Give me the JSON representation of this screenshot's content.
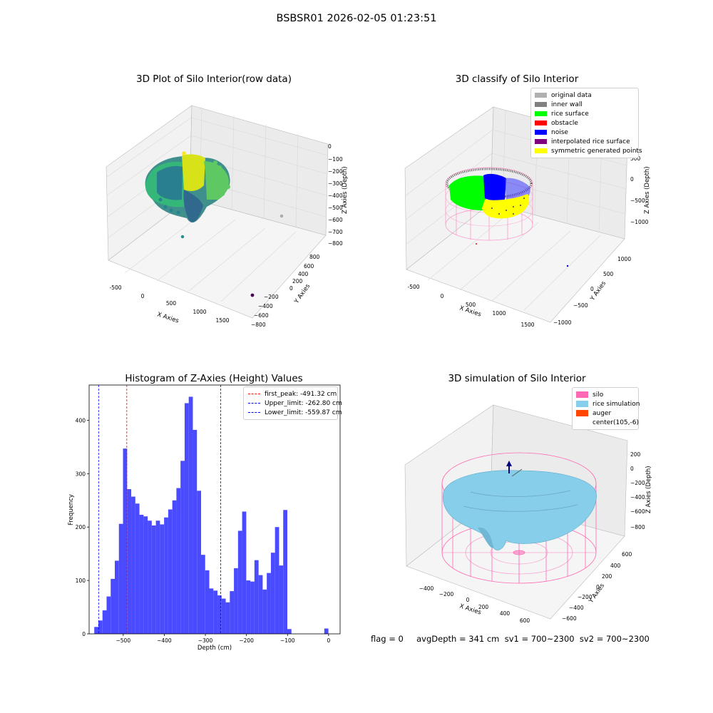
{
  "suptitle": "BSBSR01 2026-02-05 01:23:51",
  "status_text": "flag = 0     avgDepth = 341 cm  sv1 = 700~2300  sv2 = 700~2300",
  "chart_data": [
    {
      "type": "scatter",
      "title": "3D Plot of Silo Interior(row data)",
      "xlabel": "X Axies",
      "ylabel": "Y Axies",
      "zlabel": "Z Axies (Depth)",
      "x_ticks": [
        "-500",
        "0",
        "500",
        "1000",
        "1500"
      ],
      "y_ticks": [
        "800",
        "600",
        "400",
        "200",
        "0",
        "−200",
        "−400",
        "−600",
        "−800"
      ],
      "z_ticks": [
        "0",
        "−100",
        "−200",
        "−300",
        "−400",
        "−500",
        "−600",
        "−700",
        "−800"
      ],
      "colormap": "viridis"
    },
    {
      "type": "scatter",
      "title": "3D classify of Silo Interior",
      "xlabel": "X Axies",
      "ylabel": "Y Axies",
      "zlabel": "Z Axies (Depth)",
      "x_ticks": [
        "-500",
        "0",
        "500",
        "1000",
        "1500"
      ],
      "y_ticks": [
        "1000",
        "500",
        "0",
        "−500",
        "−1000"
      ],
      "z_ticks": [
        "500",
        "0",
        "−500",
        "−1000"
      ],
      "legend_position": "top-right",
      "legend": [
        {
          "label": "original data",
          "color": "#b0b0b0"
        },
        {
          "label": "inner wall",
          "color": "#808080"
        },
        {
          "label": "rice surface",
          "color": "#00ff00"
        },
        {
          "label": "obstacle",
          "color": "#ff0000"
        },
        {
          "label": "noise",
          "color": "#0000ff"
        },
        {
          "label": "interpolated rice surface",
          "color": "#800080"
        },
        {
          "label": "symmetric generated points",
          "color": "#ffff00"
        }
      ]
    },
    {
      "type": "bar",
      "title": "Histogram of Z-Axies (Height) Values",
      "xlabel": "Depth (cm)",
      "ylabel": "Frequency",
      "xlim": [
        -583,
        28
      ],
      "ylim": [
        0,
        466
      ],
      "x_ticks": [
        -500,
        -400,
        -300,
        -200,
        -100,
        0
      ],
      "x_tick_labels": [
        "−500",
        "−400",
        "−300",
        "−200",
        "−100",
        "0"
      ],
      "y_ticks": [
        0,
        100,
        200,
        300,
        400
      ],
      "bar_color": "#4a4aff",
      "bin_edges": [
        -570.5,
        -560.5,
        -550.5,
        -540.5,
        -530.5,
        -520.5,
        -510.5,
        -500.5,
        -490.5,
        -480.5,
        -470.5,
        -460.5,
        -450.5,
        -440.5,
        -430.5,
        -420.5,
        -410.5,
        -400.5,
        -390.5,
        -380.5,
        -370.5,
        -360.5,
        -350.5,
        -340.5,
        -330.5,
        -320.5,
        -310.5,
        -300.5,
        -290.5,
        -280.5,
        -270.5,
        -260.5,
        -250.5,
        -240.5,
        -230.5,
        -220.5,
        -210.5,
        -200.5,
        -190.5,
        -180.5,
        -170.5,
        -160.5,
        -150.5,
        -140.5,
        -130.5,
        -120.5,
        -110.5,
        -100.5,
        -90.5,
        -80.5,
        -70.5,
        -60.5,
        -50.5,
        -40.5,
        -30.5,
        -20.5,
        -10.5,
        -0.5
      ],
      "counts": [
        13,
        25,
        44,
        70,
        103,
        137,
        206,
        347,
        271,
        257,
        244,
        223,
        220,
        212,
        203,
        212,
        205,
        218,
        233,
        250,
        273,
        324,
        432,
        444,
        382,
        268,
        148,
        119,
        85,
        81,
        72,
        66,
        59,
        80,
        123,
        193,
        229,
        100,
        98,
        138,
        110,
        83,
        114,
        152,
        200,
        128,
        232,
        9,
        0,
        0,
        0,
        0,
        0,
        0,
        0,
        0,
        10
      ],
      "vlines": [
        {
          "label": "first_peak: -491.32 cm",
          "value": -491.32,
          "color": "#ff0000"
        },
        {
          "label": "Upper_limit: -262.80 cm",
          "value": -262.8,
          "color": "#0000ff"
        },
        {
          "label": "Lower_limit: -559.87 cm",
          "value": -559.87,
          "color": "#0000ff"
        }
      ],
      "legend_position": "top-right"
    },
    {
      "type": "scatter",
      "title": "3D simulation of Silo Interior",
      "xlabel": "X Axies",
      "ylabel": "Y Axies",
      "zlabel": "Z Axies (Depth)",
      "x_ticks": [
        "−400",
        "−200",
        "0",
        "200",
        "400",
        "600"
      ],
      "y_ticks": [
        "600",
        "400",
        "200",
        "0",
        "−200",
        "−400",
        "−600"
      ],
      "z_ticks": [
        "200",
        "0",
        "−200",
        "−400",
        "−600",
        "−800"
      ],
      "legend_position": "top-right",
      "legend": [
        {
          "label": "silo",
          "color": "#ff69b4"
        },
        {
          "label": "rice simulation",
          "color": "#87ceeb"
        },
        {
          "label": "auger",
          "color": "#ff4500"
        },
        {
          "label": "center(105,-6)",
          "color": "#ffffff"
        }
      ]
    }
  ]
}
